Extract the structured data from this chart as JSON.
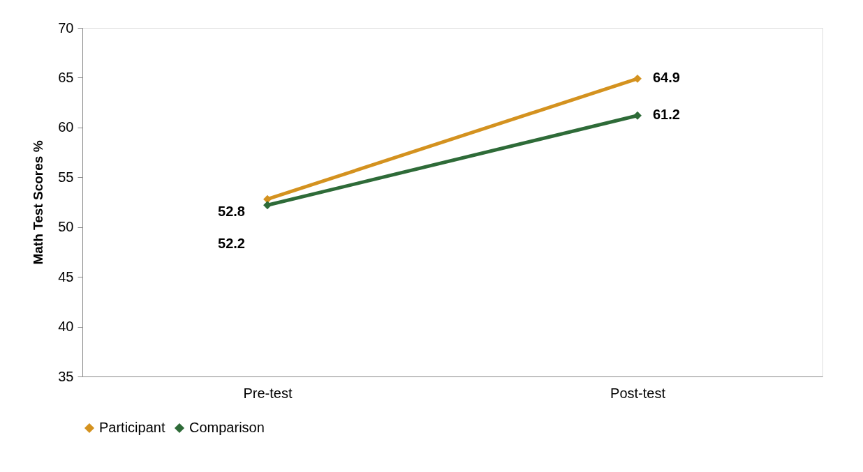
{
  "chart_data": {
    "type": "line",
    "ylabel": "Math Test Scores %",
    "categories": [
      "Pre-test",
      "Post-test"
    ],
    "series": [
      {
        "name": "Participant",
        "color": "#d4921f",
        "values": [
          52.8,
          64.9
        ]
      },
      {
        "name": "Comparison",
        "color": "#2e6b38",
        "values": [
          52.2,
          61.2
        ]
      }
    ],
    "ylim": [
      35,
      70
    ],
    "yticks": [
      35,
      40,
      45,
      50,
      55,
      60,
      65,
      70
    ],
    "grid": false,
    "legend": "bottom",
    "marker": "diamond",
    "line_style": "solid",
    "data_labels": true
  }
}
